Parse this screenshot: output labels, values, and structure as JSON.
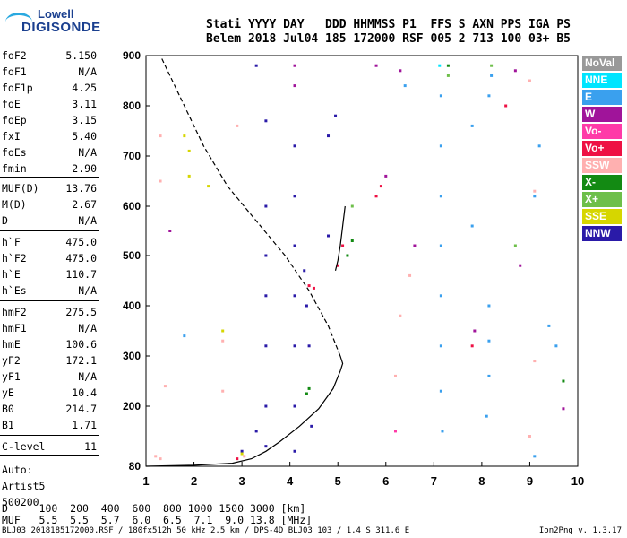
{
  "logo": {
    "line1": "Lowell",
    "line2": "DIGISONDE"
  },
  "header": {
    "row1": "Stati YYYY DAY   DDD HHMMSS P1  FFS S AXN PPS IGA PS",
    "row2": "Belem 2018 Jul04 185 172000 RSF 005 2 713 100 03+ B5"
  },
  "params": [
    {
      "k": "foF2",
      "v": "5.150"
    },
    {
      "k": "foF1",
      "v": "N/A"
    },
    {
      "k": "foF1p",
      "v": "4.25"
    },
    {
      "k": "foE",
      "v": "3.11"
    },
    {
      "k": "foEp",
      "v": "3.15"
    },
    {
      "k": "fxI",
      "v": "5.40"
    },
    {
      "k": "foEs",
      "v": "N/A"
    },
    {
      "k": "fmin",
      "v": "2.90"
    },
    {
      "k": "MUF(D)",
      "v": "13.76"
    },
    {
      "k": "M(D)",
      "v": "2.67"
    },
    {
      "k": "D",
      "v": "N/A"
    },
    {
      "k": "h`F",
      "v": "475.0"
    },
    {
      "k": "h`F2",
      "v": "475.0"
    },
    {
      "k": "h`E",
      "v": "110.7"
    },
    {
      "k": "h`Es",
      "v": "N/A"
    },
    {
      "k": "hmF2",
      "v": "275.5"
    },
    {
      "k": "hmF1",
      "v": "N/A"
    },
    {
      "k": "hmE",
      "v": "100.6"
    },
    {
      "k": "yF2",
      "v": "172.1"
    },
    {
      "k": "yF1",
      "v": "N/A"
    },
    {
      "k": "yE",
      "v": "10.4"
    },
    {
      "k": "B0",
      "v": "214.7"
    },
    {
      "k": "B1",
      "v": "1.71"
    },
    {
      "k": "C-level",
      "v": "11"
    }
  ],
  "auto": {
    "l1": "Auto:",
    "l2": "Artist5",
    "l3": "500200"
  },
  "legend": [
    {
      "label": "NoVal",
      "color": "#999999"
    },
    {
      "label": "NNE",
      "color": "#00e5ff"
    },
    {
      "label": "E",
      "color": "#3aa0ee"
    },
    {
      "label": "W",
      "color": "#a0149a"
    },
    {
      "label": "Vo-",
      "color": "#ff3aa8"
    },
    {
      "label": "Vo+",
      "color": "#ee1144"
    },
    {
      "label": "SSW",
      "color": "#ffb0b0"
    },
    {
      "label": "X-",
      "color": "#138a13"
    },
    {
      "label": "X+",
      "color": "#6ebf4a"
    },
    {
      "label": "SSE",
      "color": "#d6d600"
    },
    {
      "label": "NNW",
      "color": "#2a1aa8"
    }
  ],
  "footer": {
    "row1": "D     100  200  400  600  800 1000 1500 3000 [km]",
    "row2": "MUF   5.5  5.5  5.7  6.0  6.5  7.1  9.0 13.8 [MHz]",
    "bottom": "BLJ03_2018185172000.RSF / 180fx512h 50 kHz 2.5 km / DPS-4D BLJ03 103 / 1.4 S 311.6 E",
    "version": "Ion2Png v. 1.3.17"
  },
  "chart_data": {
    "type": "scatter",
    "xlim": [
      1,
      10
    ],
    "ylim": [
      80,
      900
    ],
    "x_ticks": [
      "1",
      "2",
      "3",
      "4",
      "5",
      "6",
      "7",
      "8",
      "9",
      "10"
    ],
    "y_ticks": [
      "80",
      "200",
      "300",
      "400",
      "500",
      "600",
      "700",
      "800",
      "900"
    ],
    "xlabel": "",
    "ylabel": "",
    "profile_solid": [
      [
        1.0,
        80
      ],
      [
        2.0,
        82
      ],
      [
        2.8,
        86
      ],
      [
        3.2,
        95
      ],
      [
        3.5,
        110
      ],
      [
        3.8,
        130
      ],
      [
        4.2,
        160
      ],
      [
        4.6,
        195
      ],
      [
        4.9,
        235
      ],
      [
        5.05,
        270
      ],
      [
        5.1,
        285
      ],
      [
        5.05,
        300
      ]
    ],
    "profile_dashed": [
      [
        5.05,
        300
      ],
      [
        4.8,
        360
      ],
      [
        4.4,
        430
      ],
      [
        3.9,
        500
      ],
      [
        3.3,
        570
      ],
      [
        2.7,
        640
      ],
      [
        2.2,
        720
      ],
      [
        1.8,
        800
      ],
      [
        1.4,
        880
      ],
      [
        1.3,
        900
      ]
    ],
    "trace_solid": [
      [
        4.95,
        470
      ],
      [
        5.0,
        490
      ],
      [
        5.05,
        520
      ],
      [
        5.1,
        560
      ],
      [
        5.15,
        600
      ]
    ],
    "points": [
      {
        "f": 7.15,
        "h": 230,
        "c": "E"
      },
      {
        "f": 7.15,
        "h": 320,
        "c": "E"
      },
      {
        "f": 7.15,
        "h": 420,
        "c": "E"
      },
      {
        "f": 7.15,
        "h": 520,
        "c": "E"
      },
      {
        "f": 7.15,
        "h": 620,
        "c": "E"
      },
      {
        "f": 7.15,
        "h": 720,
        "c": "E"
      },
      {
        "f": 7.15,
        "h": 820,
        "c": "E"
      },
      {
        "f": 7.18,
        "h": 150,
        "c": "E"
      },
      {
        "f": 7.12,
        "h": 880,
        "c": "NNE"
      },
      {
        "f": 8.15,
        "h": 260,
        "c": "E"
      },
      {
        "f": 8.15,
        "h": 330,
        "c": "E"
      },
      {
        "f": 8.15,
        "h": 400,
        "c": "E"
      },
      {
        "f": 8.1,
        "h": 180,
        "c": "E"
      },
      {
        "f": 8.15,
        "h": 820,
        "c": "E"
      },
      {
        "f": 8.2,
        "h": 860,
        "c": "E"
      },
      {
        "f": 4.1,
        "h": 110,
        "c": "NNW"
      },
      {
        "f": 4.1,
        "h": 200,
        "c": "NNW"
      },
      {
        "f": 4.1,
        "h": 320,
        "c": "NNW"
      },
      {
        "f": 4.1,
        "h": 420,
        "c": "NNW"
      },
      {
        "f": 4.1,
        "h": 520,
        "c": "NNW"
      },
      {
        "f": 4.1,
        "h": 620,
        "c": "NNW"
      },
      {
        "f": 4.1,
        "h": 720,
        "c": "NNW"
      },
      {
        "f": 4.1,
        "h": 840,
        "c": "W"
      },
      {
        "f": 4.1,
        "h": 880,
        "c": "W"
      },
      {
        "f": 3.5,
        "h": 120,
        "c": "NNW"
      },
      {
        "f": 3.5,
        "h": 200,
        "c": "NNW"
      },
      {
        "f": 3.5,
        "h": 320,
        "c": "NNW"
      },
      {
        "f": 3.5,
        "h": 420,
        "c": "NNW"
      },
      {
        "f": 3.5,
        "h": 500,
        "c": "NNW"
      },
      {
        "f": 3.5,
        "h": 600,
        "c": "NNW"
      },
      {
        "f": 3.5,
        "h": 770,
        "c": "NNW"
      },
      {
        "f": 3.3,
        "h": 150,
        "c": "NNW"
      },
      {
        "f": 3.0,
        "h": 110,
        "c": "NNW"
      },
      {
        "f": 2.9,
        "h": 95,
        "c": "Vo+"
      },
      {
        "f": 3.0,
        "h": 105,
        "c": "SSE"
      },
      {
        "f": 3.05,
        "h": 100,
        "c": "SSW"
      },
      {
        "f": 4.4,
        "h": 235,
        "c": "X-"
      },
      {
        "f": 4.35,
        "h": 225,
        "c": "X-"
      },
      {
        "f": 4.4,
        "h": 440,
        "c": "Vo+"
      },
      {
        "f": 4.5,
        "h": 435,
        "c": "Vo+"
      },
      {
        "f": 4.3,
        "h": 470,
        "c": "NNW"
      },
      {
        "f": 4.35,
        "h": 400,
        "c": "NNW"
      },
      {
        "f": 4.4,
        "h": 320,
        "c": "NNW"
      },
      {
        "f": 4.45,
        "h": 160,
        "c": "NNW"
      },
      {
        "f": 4.8,
        "h": 540,
        "c": "NNW"
      },
      {
        "f": 4.8,
        "h": 740,
        "c": "NNW"
      },
      {
        "f": 4.95,
        "h": 780,
        "c": "NNW"
      },
      {
        "f": 5.0,
        "h": 480,
        "c": "Vo+"
      },
      {
        "f": 5.1,
        "h": 520,
        "c": "Vo+"
      },
      {
        "f": 5.2,
        "h": 500,
        "c": "X-"
      },
      {
        "f": 5.3,
        "h": 530,
        "c": "X-"
      },
      {
        "f": 5.8,
        "h": 620,
        "c": "Vo+"
      },
      {
        "f": 5.9,
        "h": 640,
        "c": "Vo+"
      },
      {
        "f": 6.0,
        "h": 660,
        "c": "W"
      },
      {
        "f": 5.8,
        "h": 880,
        "c": "W"
      },
      {
        "f": 6.3,
        "h": 870,
        "c": "W"
      },
      {
        "f": 6.4,
        "h": 840,
        "c": "E"
      },
      {
        "f": 6.6,
        "h": 520,
        "c": "W"
      },
      {
        "f": 6.5,
        "h": 460,
        "c": "SSW"
      },
      {
        "f": 6.3,
        "h": 380,
        "c": "SSW"
      },
      {
        "f": 6.2,
        "h": 260,
        "c": "SSW"
      },
      {
        "f": 6.2,
        "h": 150,
        "c": "Vo-"
      },
      {
        "f": 7.3,
        "h": 860,
        "c": "X+"
      },
      {
        "f": 7.3,
        "h": 880,
        "c": "X-"
      },
      {
        "f": 7.8,
        "h": 760,
        "c": "E"
      },
      {
        "f": 7.8,
        "h": 560,
        "c": "E"
      },
      {
        "f": 7.85,
        "h": 350,
        "c": "W"
      },
      {
        "f": 7.8,
        "h": 320,
        "c": "Vo+"
      },
      {
        "f": 8.2,
        "h": 880,
        "c": "X+"
      },
      {
        "f": 8.5,
        "h": 800,
        "c": "Vo+"
      },
      {
        "f": 8.7,
        "h": 870,
        "c": "W"
      },
      {
        "f": 8.7,
        "h": 520,
        "c": "X+"
      },
      {
        "f": 8.8,
        "h": 480,
        "c": "W"
      },
      {
        "f": 9.0,
        "h": 850,
        "c": "SSW"
      },
      {
        "f": 9.1,
        "h": 620,
        "c": "E"
      },
      {
        "f": 9.1,
        "h": 630,
        "c": "SSW"
      },
      {
        "f": 9.2,
        "h": 720,
        "c": "E"
      },
      {
        "f": 9.4,
        "h": 360,
        "c": "E"
      },
      {
        "f": 9.55,
        "h": 320,
        "c": "E"
      },
      {
        "f": 9.1,
        "h": 290,
        "c": "SSW"
      },
      {
        "f": 9.7,
        "h": 250,
        "c": "X-"
      },
      {
        "f": 9.7,
        "h": 195,
        "c": "W"
      },
      {
        "f": 9.1,
        "h": 100,
        "c": "E"
      },
      {
        "f": 9.0,
        "h": 140,
        "c": "SSW"
      },
      {
        "f": 1.3,
        "h": 740,
        "c": "SSW"
      },
      {
        "f": 1.3,
        "h": 650,
        "c": "SSW"
      },
      {
        "f": 1.5,
        "h": 550,
        "c": "W"
      },
      {
        "f": 1.9,
        "h": 710,
        "c": "SSE"
      },
      {
        "f": 1.9,
        "h": 660,
        "c": "SSE"
      },
      {
        "f": 1.8,
        "h": 740,
        "c": "SSE"
      },
      {
        "f": 2.3,
        "h": 640,
        "c": "SSE"
      },
      {
        "f": 2.6,
        "h": 350,
        "c": "SSE"
      },
      {
        "f": 2.6,
        "h": 330,
        "c": "SSW"
      },
      {
        "f": 2.6,
        "h": 230,
        "c": "SSW"
      },
      {
        "f": 1.8,
        "h": 340,
        "c": "E"
      },
      {
        "f": 1.4,
        "h": 240,
        "c": "SSW"
      },
      {
        "f": 1.2,
        "h": 100,
        "c": "SSW"
      },
      {
        "f": 1.3,
        "h": 95,
        "c": "SSW"
      },
      {
        "f": 2.9,
        "h": 760,
        "c": "SSW"
      },
      {
        "f": 3.3,
        "h": 880,
        "c": "NNW"
      },
      {
        "f": 5.3,
        "h": 600,
        "c": "X+"
      }
    ]
  }
}
